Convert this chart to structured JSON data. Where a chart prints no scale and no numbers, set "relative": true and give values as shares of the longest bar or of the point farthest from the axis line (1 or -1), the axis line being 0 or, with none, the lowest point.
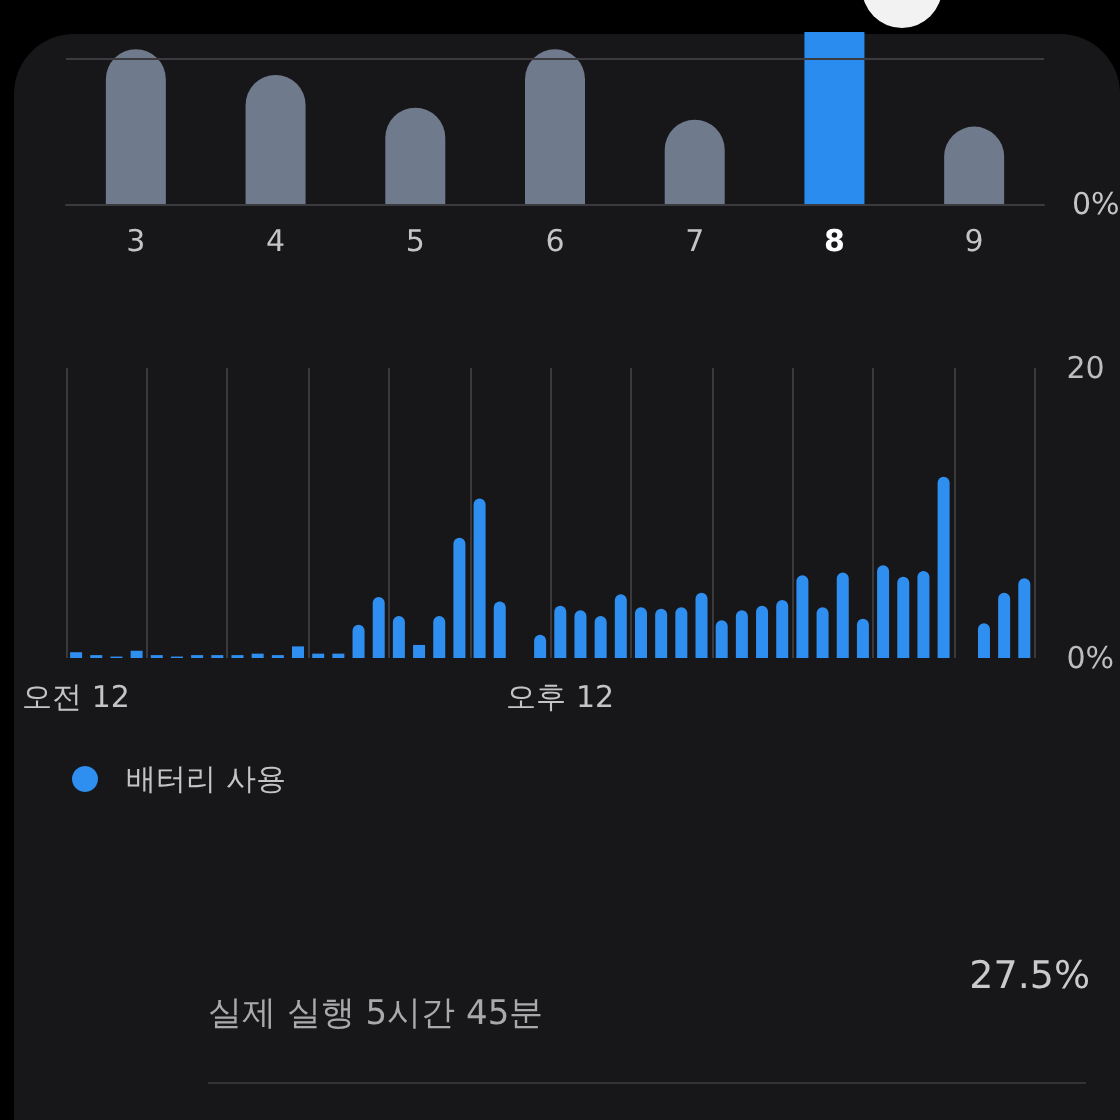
{
  "chart_data": [
    {
      "type": "bar",
      "relative": true,
      "categories": [
        "3",
        "4",
        "5",
        "6",
        "7",
        "8",
        "9"
      ],
      "values": [
        0.9,
        0.75,
        0.56,
        0.9,
        0.49,
        1,
        0.45
      ],
      "colors": [
        "#6f7a8c",
        "#6f7a8c",
        "#6f7a8c",
        "#6f7a8c",
        "#6f7a8c",
        "#2b8cf0",
        "#6f7a8c"
      ],
      "ref_lines": [
        {
          "axis": "y",
          "value": 0.85,
          "color": "#3b3b3f"
        }
      ],
      "annotations": [
        "0%"
      ]
    },
    {
      "type": "bar",
      "categories": [
        "오전 12",
        null,
        null,
        null,
        null,
        null,
        null,
        null,
        null,
        null,
        null,
        null,
        null,
        null,
        null,
        null,
        null,
        null,
        null,
        null,
        null,
        null,
        null,
        null,
        "오후 12",
        null,
        null,
        null,
        null,
        null,
        null,
        null,
        null,
        null,
        null,
        null,
        null,
        null,
        null,
        null,
        null,
        null,
        null,
        null,
        null,
        null,
        null,
        null
      ],
      "series": [
        {
          "name": "배터리 사용",
          "color": "#2f8ff0",
          "values": [
            0.4,
            0.2,
            0.1,
            0.5,
            0.2,
            0.1,
            0.2,
            0.2,
            0.2,
            0.3,
            0.2,
            0.8,
            0.3,
            0.3,
            2.3,
            4.2,
            2.9,
            0.9,
            2.9,
            8.3,
            11.0,
            3.9,
            null,
            1.6,
            3.6,
            3.3,
            2.9,
            4.4,
            3.5,
            3.4,
            3.5,
            4.5,
            2.6,
            3.3,
            3.6,
            4.0,
            5.7,
            3.5,
            5.9,
            2.7,
            6.4,
            5.6,
            6.0,
            12.5,
            null,
            2.4,
            4.5,
            5.5
          ]
        }
      ],
      "ylim": [
        0,
        20
      ],
      "yticks": [
        {
          "value": 0,
          "label": "0%"
        },
        20
      ],
      "grid": "x",
      "legend": "bottom left"
    },
    {
      "type": "other",
      "annotations": [
        "실제 실행 5시간 45분",
        "27.5%"
      ]
    }
  ]
}
